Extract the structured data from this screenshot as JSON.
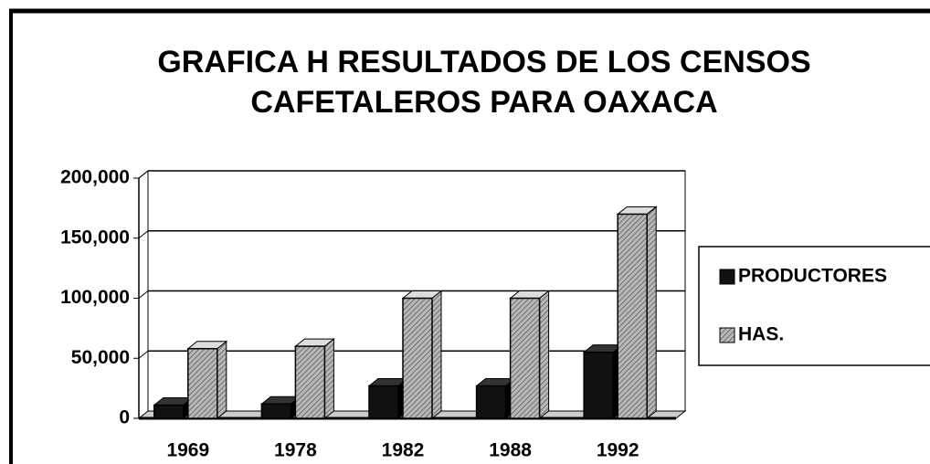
{
  "chart_data": {
    "type": "bar3d",
    "title": [
      "GRAFICA H  RESULTADOS DE LOS CENSOS",
      "CAFETALEROS PARA OAXACA"
    ],
    "categories": [
      "1969",
      "1978",
      "1982",
      "1988",
      "1992"
    ],
    "series": [
      {
        "name": "PRODUCTORES",
        "color": "#111111",
        "values": [
          11000,
          12000,
          27000,
          27000,
          55000
        ]
      },
      {
        "name": "HAS.",
        "color": "#9a9a9a",
        "values": [
          58000,
          60000,
          100000,
          100000,
          170000
        ]
      }
    ],
    "ylim": [
      0,
      200000
    ],
    "yticks": [
      0,
      {
        "value": 50000,
        "label": "50,000"
      },
      {
        "value": 100000,
        "label": "100,000"
      },
      {
        "value": 150000,
        "label": "150,000"
      },
      {
        "value": 200000,
        "label": "200,000"
      }
    ],
    "grid": true,
    "legend": "right"
  }
}
